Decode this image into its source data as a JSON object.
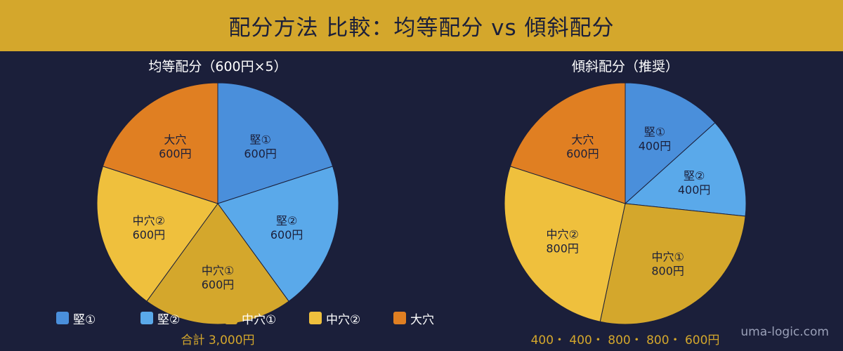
{
  "header": {
    "title": "配分方法 比較：均等配分 vs 傾斜配分"
  },
  "chart_data": [
    {
      "type": "pie",
      "title": "均等配分（600円×5）",
      "categories": [
        "堅①",
        "堅②",
        "中穴①",
        "中穴②",
        "大穴"
      ],
      "values": [
        600,
        600,
        600,
        600,
        600
      ],
      "value_labels": [
        "600円",
        "600円",
        "600円",
        "600円",
        "600円"
      ],
      "colors": [
        "#4a8fdb",
        "#5aa9ea",
        "#d4a72c",
        "#efc03d",
        "#e07f22"
      ],
      "footer": "合計 3,000円"
    },
    {
      "type": "pie",
      "title": "傾斜配分（推奨）",
      "categories": [
        "堅①",
        "堅②",
        "中穴①",
        "中穴②",
        "大穴"
      ],
      "values": [
        400,
        400,
        800,
        800,
        600
      ],
      "value_labels": [
        "400円",
        "400円",
        "800円",
        "800円",
        "600円"
      ],
      "colors": [
        "#4a8fdb",
        "#5aa9ea",
        "#d4a72c",
        "#efc03d",
        "#e07f22"
      ],
      "footer": "400・ 400・ 800・ 800・ 600円"
    }
  ],
  "legend": [
    {
      "label": "堅①",
      "color": "#4a8fdb"
    },
    {
      "label": "堅②",
      "color": "#5aa9ea"
    },
    {
      "label": "中穴①",
      "color": "#d4a72c"
    },
    {
      "label": "中穴②",
      "color": "#efc03d"
    },
    {
      "label": "大穴",
      "color": "#e07f22"
    }
  ],
  "watermark": "uma-logic.com"
}
